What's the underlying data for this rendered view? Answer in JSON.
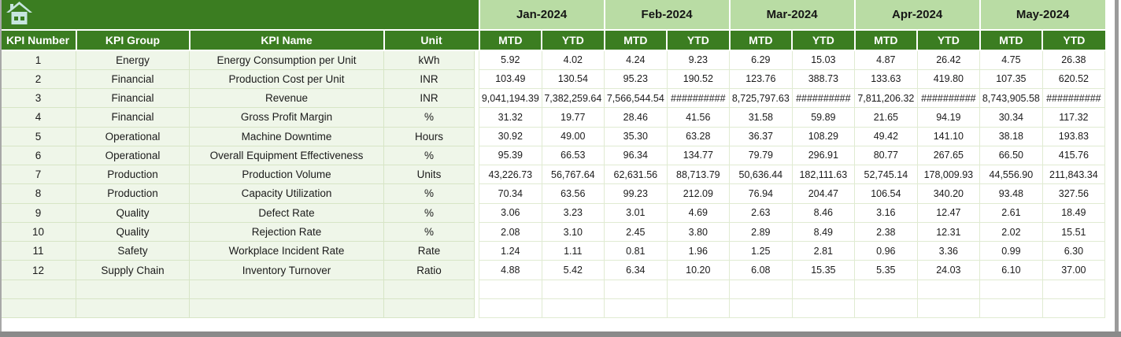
{
  "table": {
    "left_headers": [
      "KPI Number",
      "KPI Group",
      "KPI Name",
      "Unit"
    ],
    "months": [
      "Jan-2024",
      "Feb-2024",
      "Mar-2024",
      "Apr-2024",
      "May-2024"
    ],
    "sub_headers": [
      "MTD",
      "YTD"
    ],
    "rows": [
      {
        "number": "1",
        "group": "Energy",
        "name": "Energy Consumption per Unit",
        "unit": "kWh",
        "values": [
          "5.92",
          "4.02",
          "4.24",
          "9.23",
          "6.29",
          "15.03",
          "4.87",
          "26.42",
          "4.75",
          "26.38"
        ]
      },
      {
        "number": "2",
        "group": "Financial",
        "name": "Production Cost per Unit",
        "unit": "INR",
        "values": [
          "103.49",
          "130.54",
          "95.23",
          "190.52",
          "123.76",
          "388.73",
          "133.63",
          "419.80",
          "107.35",
          "620.52"
        ]
      },
      {
        "number": "3",
        "group": "Financial",
        "name": "Revenue",
        "unit": "INR",
        "values": [
          "9,041,194.39",
          "7,382,259.64",
          "7,566,544.54",
          "##########",
          "8,725,797.63",
          "##########",
          "7,811,206.32",
          "##########",
          "8,743,905.58",
          "##########"
        ]
      },
      {
        "number": "4",
        "group": "Financial",
        "name": "Gross Profit Margin",
        "unit": "%",
        "values": [
          "31.32",
          "19.77",
          "28.46",
          "41.56",
          "31.58",
          "59.89",
          "21.65",
          "94.19",
          "30.34",
          "117.32"
        ]
      },
      {
        "number": "5",
        "group": "Operational",
        "name": "Machine Downtime",
        "unit": "Hours",
        "values": [
          "30.92",
          "49.00",
          "35.30",
          "63.28",
          "36.37",
          "108.29",
          "49.42",
          "141.10",
          "38.18",
          "193.83"
        ]
      },
      {
        "number": "6",
        "group": "Operational",
        "name": "Overall Equipment Effectiveness",
        "unit": "%",
        "values": [
          "95.39",
          "66.53",
          "96.34",
          "134.77",
          "79.79",
          "296.91",
          "80.77",
          "267.65",
          "66.50",
          "415.76"
        ]
      },
      {
        "number": "7",
        "group": "Production",
        "name": "Production Volume",
        "unit": "Units",
        "values": [
          "43,226.73",
          "56,767.64",
          "62,631.56",
          "88,713.79",
          "50,636.44",
          "182,111.63",
          "52,745.14",
          "178,009.93",
          "44,556.90",
          "211,843.34"
        ]
      },
      {
        "number": "8",
        "group": "Production",
        "name": "Capacity Utilization",
        "unit": "%",
        "values": [
          "70.34",
          "63.56",
          "99.23",
          "212.09",
          "76.94",
          "204.47",
          "106.54",
          "340.20",
          "93.48",
          "327.56"
        ]
      },
      {
        "number": "9",
        "group": "Quality",
        "name": "Defect Rate",
        "unit": "%",
        "values": [
          "3.06",
          "3.23",
          "3.01",
          "4.69",
          "2.63",
          "8.46",
          "3.16",
          "12.47",
          "2.61",
          "18.49"
        ]
      },
      {
        "number": "10",
        "group": "Quality",
        "name": "Rejection Rate",
        "unit": "%",
        "values": [
          "2.08",
          "3.10",
          "2.45",
          "3.80",
          "2.89",
          "8.49",
          "2.38",
          "12.31",
          "2.02",
          "15.51"
        ]
      },
      {
        "number": "11",
        "group": "Safety",
        "name": "Workplace Incident Rate",
        "unit": "Rate",
        "values": [
          "1.24",
          "1.11",
          "0.81",
          "1.96",
          "1.25",
          "2.81",
          "0.96",
          "3.36",
          "0.99",
          "6.30"
        ]
      },
      {
        "number": "12",
        "group": "Supply Chain",
        "name": "Inventory Turnover",
        "unit": "Ratio",
        "values": [
          "4.88",
          "5.42",
          "6.34",
          "10.20",
          "6.08",
          "15.35",
          "5.35",
          "24.03",
          "6.10",
          "37.00"
        ]
      },
      {
        "number": "",
        "group": "",
        "name": "",
        "unit": "",
        "values": [
          "",
          "",
          "",
          "",
          "",
          "",
          "",
          "",
          "",
          ""
        ]
      },
      {
        "number": "",
        "group": "",
        "name": "",
        "unit": "",
        "values": [
          "",
          "",
          "",
          "",
          "",
          "",
          "",
          "",
          "",
          ""
        ]
      }
    ]
  },
  "icons": {
    "home": "home-icon"
  },
  "colors": {
    "header_green": "#3B7D21",
    "month_band_green": "#B9DCA4",
    "row_tint_green": "#EFF6E9",
    "grid_border_green": "#D7E5C6",
    "home_icon_fill": "#C7E5DF",
    "window_grey": "#8A8A8A"
  }
}
